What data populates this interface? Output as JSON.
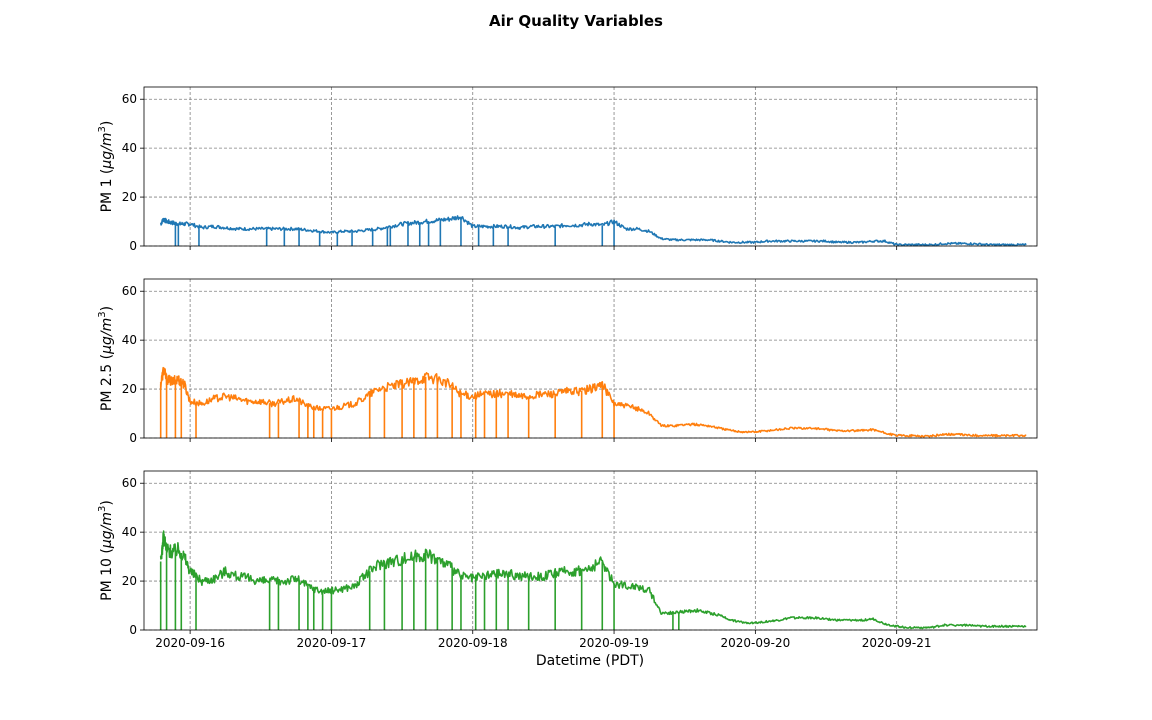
{
  "figure": {
    "title": "Air Quality Variables",
    "xlabel": "Datetime (PDT)"
  },
  "chart_data": [
    {
      "type": "line",
      "ylabel": "PM 1 (μg/m³)",
      "ylabel_main": "PM 1",
      "ylabel_unit": "μg/m",
      "ylabel_sup": "3",
      "color": "#1f77b4",
      "ylim": [
        0,
        65
      ],
      "yticks": [
        "0",
        "20",
        "40",
        "60"
      ],
      "xlim": [
        "2020-09-15 16:10",
        "2020-09-21 23:50"
      ],
      "xticks": [
        "2020-09-16",
        "2020-09-17",
        "2020-09-18",
        "2020-09-19",
        "2020-09-20",
        "2020-09-21"
      ],
      "grid": true,
      "series": [
        {
          "x": [
            "2020-09-15 19:00",
            "2020-09-15 19:30",
            "2020-09-15 20:00",
            "2020-09-15 21:00",
            "2020-09-15 22:00",
            "2020-09-15 23:00",
            "2020-09-16 00:00",
            "2020-09-16 02:00",
            "2020-09-16 04:00",
            "2020-09-16 06:00",
            "2020-09-16 08:00",
            "2020-09-16 10:00",
            "2020-09-16 12:00",
            "2020-09-16 14:00",
            "2020-09-16 16:00",
            "2020-09-16 18:00",
            "2020-09-16 20:00",
            "2020-09-16 22:00",
            "2020-09-17 00:00",
            "2020-09-17 02:00",
            "2020-09-17 04:00",
            "2020-09-17 06:00",
            "2020-09-17 08:00",
            "2020-09-17 10:00",
            "2020-09-17 12:00",
            "2020-09-17 14:00",
            "2020-09-17 16:00",
            "2020-09-17 18:00",
            "2020-09-17 20:00",
            "2020-09-17 22:00",
            "2020-09-18 00:00",
            "2020-09-18 02:00",
            "2020-09-18 04:00",
            "2020-09-18 06:00",
            "2020-09-18 08:00",
            "2020-09-18 10:00",
            "2020-09-18 12:00",
            "2020-09-18 14:00",
            "2020-09-18 16:00",
            "2020-09-18 18:00",
            "2020-09-18 20:00",
            "2020-09-18 22:00",
            "2020-09-19 00:00",
            "2020-09-19 02:00",
            "2020-09-19 04:00",
            "2020-09-19 06:00",
            "2020-09-19 08:00",
            "2020-09-19 10:00",
            "2020-09-19 12:00",
            "2020-09-19 14:00",
            "2020-09-19 16:00",
            "2020-09-19 18:00",
            "2020-09-19 20:00",
            "2020-09-19 22:00",
            "2020-09-20 00:00",
            "2020-09-20 02:00",
            "2020-09-20 04:00",
            "2020-09-20 06:00",
            "2020-09-20 08:00",
            "2020-09-20 10:00",
            "2020-09-20 12:00",
            "2020-09-20 14:00",
            "2020-09-20 16:00",
            "2020-09-20 18:00",
            "2020-09-20 20:00",
            "2020-09-20 22:00",
            "2020-09-21 00:00",
            "2020-09-21 02:00",
            "2020-09-21 04:00",
            "2020-09-21 06:00",
            "2020-09-21 08:00",
            "2020-09-21 10:00",
            "2020-09-21 12:00",
            "2020-09-21 14:00",
            "2020-09-21 16:00",
            "2020-09-21 18:00",
            "2020-09-21 20:00",
            "2020-09-21 22:00"
          ],
          "y": [
            9,
            11,
            10,
            9.5,
            9,
            9,
            9,
            7.5,
            8,
            7.5,
            7,
            7,
            7,
            7,
            7,
            7,
            6.5,
            6,
            5.5,
            6,
            6,
            6.5,
            7,
            8,
            9,
            9.5,
            10,
            10.5,
            11,
            12,
            8,
            8,
            8,
            8,
            7.5,
            8,
            8,
            8,
            8.5,
            8.5,
            9,
            8.5,
            10,
            7,
            7,
            6,
            3,
            2.5,
            2.5,
            2.5,
            2.5,
            2,
            1.5,
            1.5,
            1.5,
            2,
            2,
            2,
            2,
            2,
            2,
            1.5,
            1.5,
            1.5,
            2,
            2,
            0.5,
            0.5,
            0.5,
            0.5,
            1,
            1,
            1,
            0.8,
            0.5,
            0.5,
            0.5,
            0.5
          ]
        }
      ],
      "dropouts": [
        "2020-09-15 21:30",
        "2020-09-15 22:00",
        "2020-09-16 01:30",
        "2020-09-16 13:00",
        "2020-09-16 16:00",
        "2020-09-16 18:30",
        "2020-09-16 22:00",
        "2020-09-17 01:00",
        "2020-09-17 03:30",
        "2020-09-17 07:00",
        "2020-09-17 09:30",
        "2020-09-17 10:00",
        "2020-09-17 13:00",
        "2020-09-17 15:00",
        "2020-09-17 16:30",
        "2020-09-17 18:30",
        "2020-09-17 22:00",
        "2020-09-18 01:00",
        "2020-09-18 03:30",
        "2020-09-18 06:00",
        "2020-09-18 14:00",
        "2020-09-18 22:00",
        "2020-09-19 00:00"
      ]
    },
    {
      "type": "line",
      "ylabel": "PM 2.5 (μg/m³)",
      "ylabel_main": "PM 2.5",
      "ylabel_unit": "μg/m",
      "ylabel_sup": "3",
      "color": "#ff7f0e",
      "ylim": [
        0,
        65
      ],
      "yticks": [
        "0",
        "20",
        "40",
        "60"
      ],
      "xlim": [
        "2020-09-15 16:10",
        "2020-09-21 23:50"
      ],
      "xticks": [
        "2020-09-16",
        "2020-09-17",
        "2020-09-18",
        "2020-09-19",
        "2020-09-20",
        "2020-09-21"
      ],
      "grid": true,
      "series": [
        {
          "x": [
            "2020-09-15 19:00",
            "2020-09-15 19:30",
            "2020-09-15 20:00",
            "2020-09-15 21:00",
            "2020-09-15 22:00",
            "2020-09-15 23:00",
            "2020-09-16 00:00",
            "2020-09-16 02:00",
            "2020-09-16 04:00",
            "2020-09-16 06:00",
            "2020-09-16 08:00",
            "2020-09-16 10:00",
            "2020-09-16 12:00",
            "2020-09-16 14:00",
            "2020-09-16 16:00",
            "2020-09-16 18:00",
            "2020-09-16 20:00",
            "2020-09-16 22:00",
            "2020-09-17 00:00",
            "2020-09-17 02:00",
            "2020-09-17 04:00",
            "2020-09-17 06:00",
            "2020-09-17 08:00",
            "2020-09-17 10:00",
            "2020-09-17 12:00",
            "2020-09-17 14:00",
            "2020-09-17 16:00",
            "2020-09-17 18:00",
            "2020-09-17 20:00",
            "2020-09-17 22:00",
            "2020-09-18 00:00",
            "2020-09-18 02:00",
            "2020-09-18 04:00",
            "2020-09-18 06:00",
            "2020-09-18 08:00",
            "2020-09-18 10:00",
            "2020-09-18 12:00",
            "2020-09-18 14:00",
            "2020-09-18 16:00",
            "2020-09-18 18:00",
            "2020-09-18 20:00",
            "2020-09-18 22:00",
            "2020-09-19 00:00",
            "2020-09-19 02:00",
            "2020-09-19 04:00",
            "2020-09-19 06:00",
            "2020-09-19 08:00",
            "2020-09-19 10:00",
            "2020-09-19 12:00",
            "2020-09-19 14:00",
            "2020-09-19 16:00",
            "2020-09-19 18:00",
            "2020-09-19 20:00",
            "2020-09-19 22:00",
            "2020-09-20 00:00",
            "2020-09-20 02:00",
            "2020-09-20 04:00",
            "2020-09-20 06:00",
            "2020-09-20 08:00",
            "2020-09-20 10:00",
            "2020-09-20 12:00",
            "2020-09-20 14:00",
            "2020-09-20 16:00",
            "2020-09-20 18:00",
            "2020-09-20 20:00",
            "2020-09-20 22:00",
            "2020-09-21 00:00",
            "2020-09-21 02:00",
            "2020-09-21 04:00",
            "2020-09-21 06:00",
            "2020-09-21 08:00",
            "2020-09-21 10:00",
            "2020-09-21 12:00",
            "2020-09-21 14:00",
            "2020-09-21 16:00",
            "2020-09-21 18:00",
            "2020-09-21 20:00",
            "2020-09-21 22:00"
          ],
          "y": [
            22,
            28,
            24,
            23,
            24,
            22,
            15,
            14,
            16,
            17,
            16,
            15,
            15,
            14,
            15,
            16,
            13,
            12,
            12,
            13,
            14,
            17,
            20,
            21,
            22,
            23,
            25,
            24,
            22,
            18,
            17,
            18,
            18,
            18,
            17,
            17,
            18,
            18,
            19,
            19,
            20,
            22,
            14,
            13,
            12,
            10,
            5,
            5,
            5.5,
            5.5,
            5,
            4,
            3,
            2.5,
            2.5,
            3,
            3.5,
            4,
            4,
            4,
            3.5,
            3,
            3,
            3,
            3.5,
            2,
            1,
            1,
            0.8,
            0.8,
            1.5,
            1.5,
            1.2,
            1,
            1,
            1,
            1,
            1
          ]
        }
      ],
      "dropouts": [
        "2020-09-15 19:00",
        "2020-09-15 20:00",
        "2020-09-15 21:30",
        "2020-09-15 22:30",
        "2020-09-16 01:00",
        "2020-09-16 13:30",
        "2020-09-16 15:00",
        "2020-09-16 18:30",
        "2020-09-16 20:00",
        "2020-09-16 21:00",
        "2020-09-16 22:30",
        "2020-09-17 00:00",
        "2020-09-17 06:30",
        "2020-09-17 09:00",
        "2020-09-17 12:00",
        "2020-09-17 14:00",
        "2020-09-17 16:00",
        "2020-09-17 18:00",
        "2020-09-17 20:30",
        "2020-09-17 22:00",
        "2020-09-18 00:30",
        "2020-09-18 02:00",
        "2020-09-18 04:00",
        "2020-09-18 06:00",
        "2020-09-18 09:30",
        "2020-09-18 14:00",
        "2020-09-18 18:30",
        "2020-09-18 22:00",
        "2020-09-19 00:00"
      ]
    },
    {
      "type": "line",
      "ylabel": "PM 10 (μg/m³)",
      "ylabel_main": "PM 10",
      "ylabel_unit": "μg/m",
      "ylabel_sup": "3",
      "color": "#2ca02c",
      "ylim": [
        0,
        65
      ],
      "yticks": [
        "0",
        "20",
        "40",
        "60"
      ],
      "xlim": [
        "2020-09-15 16:10",
        "2020-09-21 23:50"
      ],
      "xticks": [
        "2020-09-16",
        "2020-09-17",
        "2020-09-18",
        "2020-09-19",
        "2020-09-20",
        "2020-09-21"
      ],
      "grid": true,
      "series": [
        {
          "x": [
            "2020-09-15 19:00",
            "2020-09-15 19:30",
            "2020-09-15 20:00",
            "2020-09-15 21:00",
            "2020-09-15 22:00",
            "2020-09-15 23:00",
            "2020-09-16 00:00",
            "2020-09-16 02:00",
            "2020-09-16 04:00",
            "2020-09-16 06:00",
            "2020-09-16 08:00",
            "2020-09-16 10:00",
            "2020-09-16 12:00",
            "2020-09-16 14:00",
            "2020-09-16 16:00",
            "2020-09-16 18:00",
            "2020-09-16 20:00",
            "2020-09-16 22:00",
            "2020-09-17 00:00",
            "2020-09-17 02:00",
            "2020-09-17 04:00",
            "2020-09-17 06:00",
            "2020-09-17 08:00",
            "2020-09-17 10:00",
            "2020-09-17 12:00",
            "2020-09-17 14:00",
            "2020-09-17 16:00",
            "2020-09-17 18:00",
            "2020-09-17 20:00",
            "2020-09-17 22:00",
            "2020-09-18 00:00",
            "2020-09-18 02:00",
            "2020-09-18 04:00",
            "2020-09-18 06:00",
            "2020-09-18 08:00",
            "2020-09-18 10:00",
            "2020-09-18 12:00",
            "2020-09-18 14:00",
            "2020-09-18 16:00",
            "2020-09-18 18:00",
            "2020-09-18 20:00",
            "2020-09-18 22:00",
            "2020-09-19 00:00",
            "2020-09-19 02:00",
            "2020-09-19 04:00",
            "2020-09-19 06:00",
            "2020-09-19 08:00",
            "2020-09-19 10:00",
            "2020-09-19 12:00",
            "2020-09-19 14:00",
            "2020-09-19 16:00",
            "2020-09-19 18:00",
            "2020-09-19 20:00",
            "2020-09-19 22:00",
            "2020-09-20 00:00",
            "2020-09-20 02:00",
            "2020-09-20 04:00",
            "2020-09-20 06:00",
            "2020-09-20 08:00",
            "2020-09-20 10:00",
            "2020-09-20 12:00",
            "2020-09-20 14:00",
            "2020-09-20 16:00",
            "2020-09-20 18:00",
            "2020-09-20 20:00",
            "2020-09-20 22:00",
            "2020-09-21 00:00",
            "2020-09-21 02:00",
            "2020-09-21 04:00",
            "2020-09-21 06:00",
            "2020-09-21 08:00",
            "2020-09-21 10:00",
            "2020-09-21 12:00",
            "2020-09-21 14:00",
            "2020-09-21 16:00",
            "2020-09-21 18:00",
            "2020-09-21 20:00",
            "2020-09-21 22:00"
          ],
          "y": [
            28,
            38,
            33,
            32,
            33,
            30,
            24,
            20,
            21,
            24,
            22,
            21,
            20,
            20,
            20,
            21,
            18,
            16,
            16,
            17,
            18,
            23,
            27,
            28,
            29,
            30,
            31,
            29,
            26,
            22,
            21,
            22,
            23,
            23,
            22,
            22,
            22,
            23,
            24,
            24,
            25,
            28,
            19,
            18,
            18,
            16,
            7,
            7,
            7.5,
            8,
            7,
            6,
            4,
            3,
            3,
            3.5,
            4,
            5,
            5,
            5,
            4.5,
            4,
            4,
            4,
            4.5,
            2.5,
            1.5,
            1,
            1,
            1,
            2,
            2,
            2,
            1.5,
            1.5,
            1.5,
            1.5,
            1.5
          ]
        }
      ],
      "dropouts": [
        "2020-09-15 19:00",
        "2020-09-15 20:00",
        "2020-09-15 21:30",
        "2020-09-15 22:30",
        "2020-09-16 01:00",
        "2020-09-16 13:30",
        "2020-09-16 15:00",
        "2020-09-16 18:30",
        "2020-09-16 20:00",
        "2020-09-16 21:00",
        "2020-09-16 22:30",
        "2020-09-17 00:00",
        "2020-09-17 06:30",
        "2020-09-17 09:00",
        "2020-09-17 12:00",
        "2020-09-17 14:00",
        "2020-09-17 16:00",
        "2020-09-17 18:00",
        "2020-09-17 20:30",
        "2020-09-17 22:00",
        "2020-09-18 00:30",
        "2020-09-18 02:00",
        "2020-09-18 04:00",
        "2020-09-18 06:00",
        "2020-09-18 09:30",
        "2020-09-18 14:00",
        "2020-09-18 18:30",
        "2020-09-18 22:00",
        "2020-09-19 00:00",
        "2020-09-19 10:00",
        "2020-09-19 11:00"
      ]
    }
  ]
}
